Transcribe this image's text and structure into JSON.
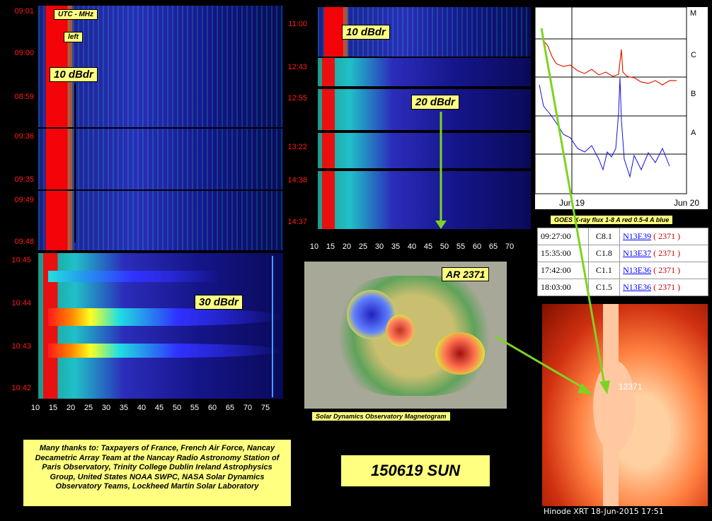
{
  "left_panel": {
    "labels": {
      "utc": "UTC - MHz",
      "left": "left",
      "dbdr_top": "10 dBdr",
      "dbdr_bottom": "30 dBdr"
    },
    "times": [
      "09:01",
      "09:00",
      "08:59",
      "09:36",
      "09:35",
      "09:49",
      "09:48",
      "10:45",
      "10:44",
      "10:43",
      "10:42"
    ],
    "freq_ticks": [
      "10",
      "15",
      "20",
      "25",
      "30",
      "35",
      "40",
      "45",
      "50",
      "55",
      "60",
      "65",
      "70",
      "75"
    ]
  },
  "mid_panel": {
    "labels": {
      "dbdr_top": "10 dBdr",
      "dbdr_mid": "20 dBdr"
    },
    "times": [
      "11:00",
      "12:43",
      "12:55",
      "13:22",
      "14:38",
      "14:37"
    ],
    "freq_ticks": [
      "10",
      "15",
      "20",
      "25",
      "30",
      "35",
      "40",
      "45",
      "50",
      "55",
      "60",
      "65",
      "70"
    ]
  },
  "goes": {
    "classes": [
      "M",
      "C",
      "B",
      "A"
    ],
    "dates": [
      "Jun 19",
      "Jun 20"
    ],
    "caption": "GOES X-ray flux 1-8 A red 0.5-4 A blue"
  },
  "flares": [
    {
      "time": "09:27:00",
      "class": "C8.1",
      "loc": "N13E39",
      "ar": "( 2371 )"
    },
    {
      "time": "15:35:00",
      "class": "C1.8",
      "loc": "N13E37",
      "ar": "( 2371 )"
    },
    {
      "time": "17:42:00",
      "class": "C1.1",
      "loc": "N13E36",
      "ar": "( 2371 )"
    },
    {
      "time": "18:03:00",
      "class": "C1.5",
      "loc": "N13E36",
      "ar": "( 2371 )"
    }
  ],
  "magnetogram": {
    "ar_label": "AR 2371",
    "caption": "Solar Dynamics Observatory Magnetogram"
  },
  "hinode": {
    "region": "12371",
    "caption": "Hinode XRT 18-Jun-2015 17:51"
  },
  "thanks": "Many thanks to: Taxpayers of France, French Air Force, Nancay Decametric Array Team at the Nancay Radio Astronomy Station of Paris Observatory, Trinity College Dublin Ireland Astrophysics Group, United States NOAA SWPC, NASA Solar Dynamics Observatory Teams, Lockheed Martin Solar Laboratory",
  "title": "150619 SUN",
  "colors": {
    "arrow": "#7dd321",
    "label_bg": "#ffff80",
    "time": "#ff1a1a"
  }
}
